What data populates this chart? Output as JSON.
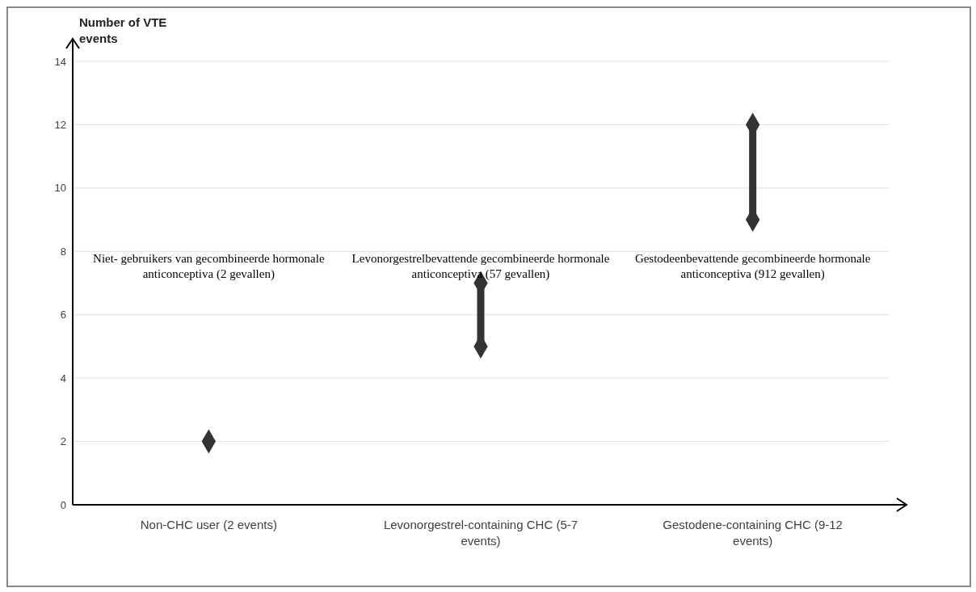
{
  "chart_data": {
    "type": "scatter",
    "ylabel": "Number of VTE events",
    "categories": [
      "Non-CHC user (2 events)",
      "Levonorgestrel-containing CHC (5-7 events)",
      "Gestodene-containing CHC (9-12 events)"
    ],
    "series": [
      {
        "color": "#333333",
        "x": [
          "Non-CHC user (2 events)",
          "Levonorgestrel-containing CHC (5-7 events)",
          "Gestodene-containing CHC (9-12 events)"
        ],
        "values": [
          2,
          5,
          9
        ]
      },
      {
        "type": "line",
        "marker": "none",
        "color": "#333333",
        "x": [
          "Levonorgestrel-containing CHC (5-7 events)",
          "Levonorgestrel-containing CHC (5-7 events)"
        ],
        "values": [
          5,
          7
        ]
      },
      {
        "type": "line",
        "marker": "none",
        "color": "#333333",
        "x": [
          "Gestodene-containing CHC (9-12 events)",
          "Gestodene-containing CHC (9-12 events)"
        ],
        "values": [
          9,
          12
        ]
      },
      {
        "color": "#333333",
        "x": [
          "Non-CHC user (2 events)",
          "Levonorgestrel-containing CHC (5-7 events)",
          "Gestodene-containing CHC (9-12 events)"
        ],
        "values": [
          null,
          7,
          12
        ]
      }
    ],
    "marker": "diamond",
    "ylim": [
      0,
      14
    ],
    "yticks": [
      0,
      2,
      4,
      6,
      8,
      10,
      12,
      14
    ],
    "grid": "y",
    "legend": false,
    "annotations": [
      "Niet- gebruikers van gecombineerde hormonale anticonceptiva (2 gevallen)",
      "Levonorgestrelbevattende gecombineerde hormonale anticonceptiva (57 gevallen)",
      "Gestodeenbevattende gecombineerde hormonale anticonceptiva (912 gevallen)"
    ]
  }
}
